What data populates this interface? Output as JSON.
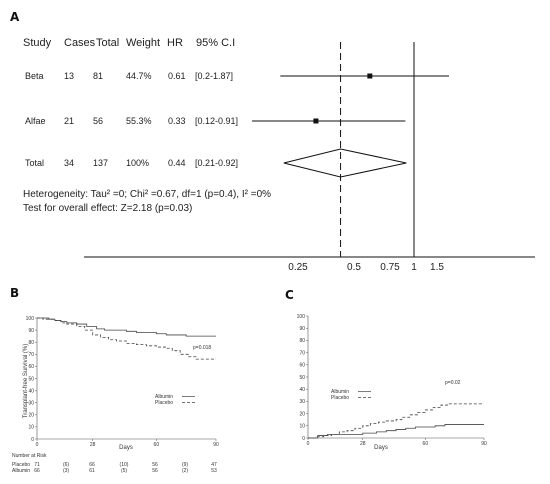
{
  "chart_data": [
    {
      "panel": "A",
      "type": "forest",
      "headers": [
        "Study",
        "Cases",
        "Total",
        "Weight",
        "HR",
        "95% C.I"
      ],
      "rows": [
        {
          "study": "Beta",
          "cases": "13",
          "total": "81",
          "weight": "44.7%",
          "hr": "0.61",
          "ci": "[0.2-1.87]",
          "hr_value": 0.61,
          "ci_low": 0.2,
          "ci_high": 1.87
        },
        {
          "study": "Alfae",
          "cases": "21",
          "total": "56",
          "weight": "55.3%",
          "hr": "0.33",
          "ci": "[0.12-0.91]",
          "hr_value": 0.33,
          "ci_low": 0.12,
          "ci_high": 0.91
        }
      ],
      "total": {
        "study": "Total",
        "cases": "34",
        "total": "137",
        "weight": "100%",
        "hr": "0.44",
        "ci": "[0.21-0.92]",
        "hr_value": 0.44,
        "ci_low": 0.21,
        "ci_high": 0.92
      },
      "heterogeneity": "Heterogeneity: Tau² =0; Chi² =0.67, df=1 (p=0.4), I² =0%",
      "overall_effect": "Test for overall effect: Z=2.18 (p=0.03)",
      "x_ticks": [
        0.25,
        0.5,
        0.75,
        1,
        1.5
      ],
      "x_tick_labels": [
        "0.25",
        "0.5",
        "0.75",
        "1",
        "1.5"
      ],
      "reference_line": 1,
      "pooled_line": 0.44
    },
    {
      "panel": "B",
      "type": "line",
      "ylabel": "Transplant-free Survival (%)",
      "xlabel": "Days",
      "xlim": [
        0,
        90
      ],
      "ylim": [
        0,
        100
      ],
      "x_ticks": [
        0,
        28,
        60,
        90
      ],
      "y_ticks": [
        0,
        10,
        20,
        30,
        40,
        50,
        60,
        70,
        80,
        90,
        100
      ],
      "annotation": "p=0.018",
      "series": [
        {
          "name": "Albumin",
          "dash": "solid",
          "points": [
            [
              0,
              100
            ],
            [
              3,
              100
            ],
            [
              6,
              99
            ],
            [
              9,
              98
            ],
            [
              12,
              97
            ],
            [
              15,
              96
            ],
            [
              20,
              95
            ],
            [
              25,
              93
            ],
            [
              30,
              91
            ],
            [
              34,
              90
            ],
            [
              40,
              90
            ],
            [
              45,
              89
            ],
            [
              50,
              88
            ],
            [
              55,
              88
            ],
            [
              60,
              87
            ],
            [
              65,
              86
            ],
            [
              70,
              86
            ],
            [
              75,
              85
            ],
            [
              80,
              85
            ],
            [
              90,
              85
            ]
          ]
        },
        {
          "name": "Placebo",
          "dash": "dashed",
          "points": [
            [
              0,
              100
            ],
            [
              3,
              99
            ],
            [
              6,
              99
            ],
            [
              9,
              98
            ],
            [
              12,
              96
            ],
            [
              15,
              95
            ],
            [
              20,
              93
            ],
            [
              24,
              90
            ],
            [
              28,
              86
            ],
            [
              32,
              84
            ],
            [
              36,
              82
            ],
            [
              40,
              81
            ],
            [
              45,
              79
            ],
            [
              50,
              78
            ],
            [
              55,
              77
            ],
            [
              60,
              76
            ],
            [
              65,
              75
            ],
            [
              68,
              73
            ],
            [
              72,
              70
            ],
            [
              76,
              68
            ],
            [
              80,
              66
            ],
            [
              90,
              66
            ]
          ]
        }
      ],
      "number_at_risk": {
        "title": "Number at Risk",
        "rows": [
          {
            "label": "Placebo",
            "values": [
              "71",
              "(6)",
              "66",
              "(10)",
              "56",
              "(9)",
              "47"
            ]
          },
          {
            "label": "Albumin",
            "values": [
              "66",
              "(3)",
              "61",
              "(5)",
              "56",
              "(2)",
              "53"
            ]
          }
        ]
      }
    },
    {
      "panel": "C",
      "type": "line",
      "xlabel": "Days",
      "xlim": [
        0,
        90
      ],
      "ylim": [
        0,
        100
      ],
      "x_ticks": [
        0,
        28,
        60,
        90
      ],
      "y_ticks": [
        0,
        10,
        20,
        30,
        40,
        50,
        60,
        70,
        80,
        90,
        100
      ],
      "annotation": "p=0.02",
      "series": [
        {
          "name": "Albumin",
          "dash": "solid",
          "points": [
            [
              0,
              0
            ],
            [
              5,
              2
            ],
            [
              10,
              3
            ],
            [
              15,
              3
            ],
            [
              20,
              3
            ],
            [
              28,
              4
            ],
            [
              35,
              5
            ],
            [
              40,
              6
            ],
            [
              45,
              7
            ],
            [
              50,
              8
            ],
            [
              55,
              9
            ],
            [
              60,
              9
            ],
            [
              65,
              10
            ],
            [
              70,
              11
            ],
            [
              80,
              11
            ],
            [
              90,
              11
            ]
          ]
        },
        {
          "name": "Placebo",
          "dash": "dashed",
          "points": [
            [
              0,
              0
            ],
            [
              4,
              1
            ],
            [
              8,
              2
            ],
            [
              12,
              3
            ],
            [
              16,
              5
            ],
            [
              20,
              6
            ],
            [
              24,
              8
            ],
            [
              28,
              10
            ],
            [
              32,
              12
            ],
            [
              36,
              13
            ],
            [
              40,
              14
            ],
            [
              45,
              15
            ],
            [
              48,
              17
            ],
            [
              52,
              19
            ],
            [
              56,
              21
            ],
            [
              60,
              23
            ],
            [
              64,
              25
            ],
            [
              68,
              27
            ],
            [
              72,
              28
            ],
            [
              80,
              28
            ],
            [
              90,
              28
            ]
          ]
        }
      ]
    }
  ]
}
